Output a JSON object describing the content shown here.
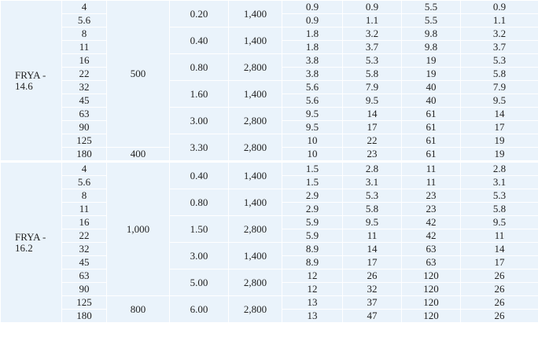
{
  "table": {
    "sections": [
      {
        "model": "FRYA - 14.6",
        "rows": [
          [
            "4",
            "500",
            "0.20",
            "1,400",
            "0.9",
            "0.9",
            "5.5",
            "0.9"
          ],
          [
            "5.6",
            null,
            null,
            null,
            "0.9",
            "1.1",
            "5.5",
            "1.1"
          ],
          [
            "8",
            null,
            "0.40",
            "1,400",
            "1.8",
            "3.2",
            "9.8",
            "3.2"
          ],
          [
            "11",
            null,
            null,
            null,
            "1.8",
            "3.7",
            "9.8",
            "3.7"
          ],
          [
            "16",
            null,
            "0.80",
            "2,800",
            "3.8",
            "5.3",
            "19",
            "5.3"
          ],
          [
            "22",
            null,
            null,
            null,
            "3.8",
            "5.8",
            "19",
            "5.8"
          ],
          [
            "32",
            null,
            "1.60",
            "1,400",
            "5.6",
            "7.9",
            "40",
            "7.9"
          ],
          [
            "45",
            null,
            null,
            null,
            "5.6",
            "9.5",
            "40",
            "9.5"
          ],
          [
            "63",
            null,
            "3.00",
            "2,800",
            "9.5",
            "14",
            "61",
            "14"
          ],
          [
            "90",
            null,
            null,
            null,
            "9.5",
            "17",
            "61",
            "17"
          ],
          [
            "125",
            null,
            "3.30",
            "2,800",
            "10",
            "22",
            "61",
            "19"
          ],
          [
            "180",
            "400",
            null,
            null,
            "10",
            "23",
            "61",
            "19"
          ]
        ]
      },
      {
        "model": "FRYA - 16.2",
        "rows": [
          [
            "4",
            "1,000",
            "0.40",
            "1,400",
            "1.5",
            "2.8",
            "11",
            "2.8"
          ],
          [
            "5.6",
            null,
            null,
            null,
            "1.5",
            "3.1",
            "11",
            "3.1"
          ],
          [
            "8",
            null,
            "0.80",
            "1,400",
            "2.9",
            "5.3",
            "23",
            "5.3"
          ],
          [
            "11",
            null,
            null,
            null,
            "2.9",
            "5.8",
            "23",
            "5.8"
          ],
          [
            "16",
            null,
            "1.50",
            "2,800",
            "5.9",
            "9.5",
            "42",
            "9.5"
          ],
          [
            "22",
            null,
            null,
            null,
            "5.9",
            "11",
            "42",
            "11"
          ],
          [
            "32",
            null,
            "3.00",
            "1,400",
            "8.9",
            "14",
            "63",
            "14"
          ],
          [
            "45",
            null,
            null,
            null,
            "8.9",
            "17",
            "63",
            "17"
          ],
          [
            "63",
            null,
            "5.00",
            "2,800",
            "12",
            "26",
            "120",
            "26"
          ],
          [
            "90",
            null,
            null,
            null,
            "12",
            "32",
            "120",
            "26"
          ],
          [
            "125",
            "800",
            "6.00",
            "2,800",
            "13",
            "37",
            "120",
            "26"
          ],
          [
            "180",
            null,
            null,
            null,
            "13",
            "47",
            "120",
            "26"
          ]
        ]
      }
    ]
  }
}
